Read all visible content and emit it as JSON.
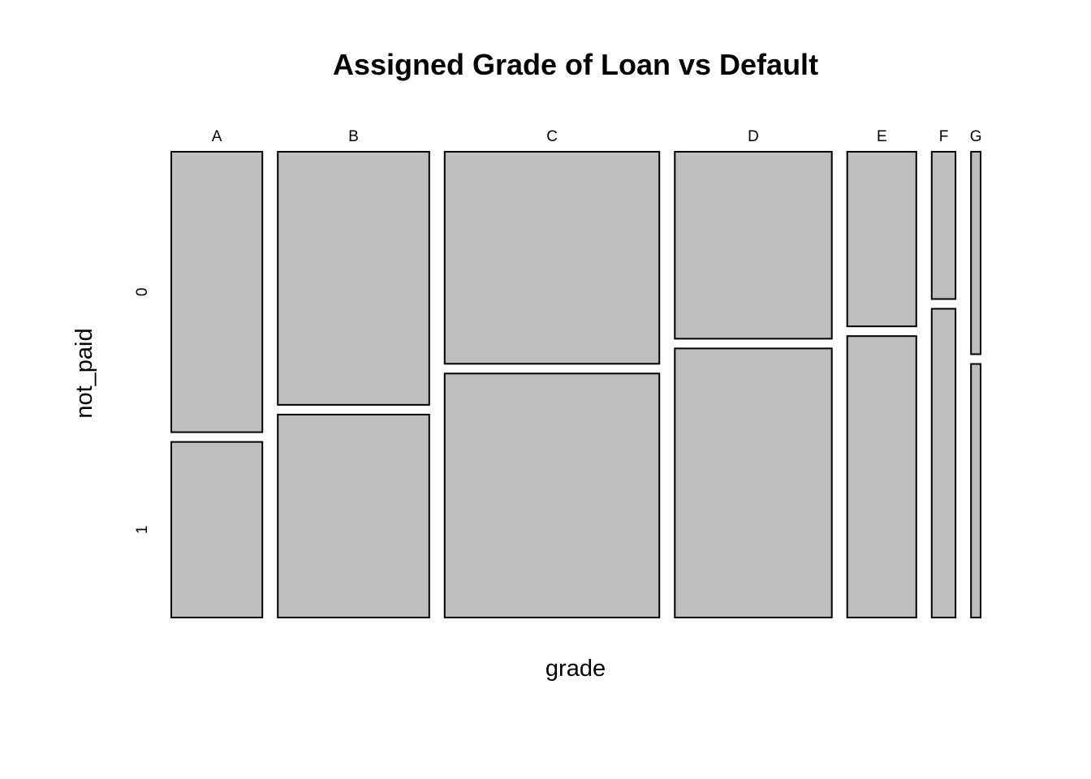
{
  "chart_data": {
    "type": "mosaic",
    "title": "Assigned Grade of Loan vs Default",
    "xlabel": "grade",
    "ylabel": "not_paid",
    "categories": [
      "A",
      "B",
      "C",
      "D",
      "E",
      "F",
      "G"
    ],
    "levels": [
      "0",
      "1"
    ],
    "column_share": [
      0.199,
      0.331,
      0.469,
      0.343,
      0.151,
      0.052,
      0.021
    ],
    "proportion_not_paid_0": [
      0.615,
      0.555,
      0.465,
      0.41,
      0.383,
      0.323,
      0.444
    ],
    "fill_color": "#bebebe",
    "border_color": "#000000"
  }
}
